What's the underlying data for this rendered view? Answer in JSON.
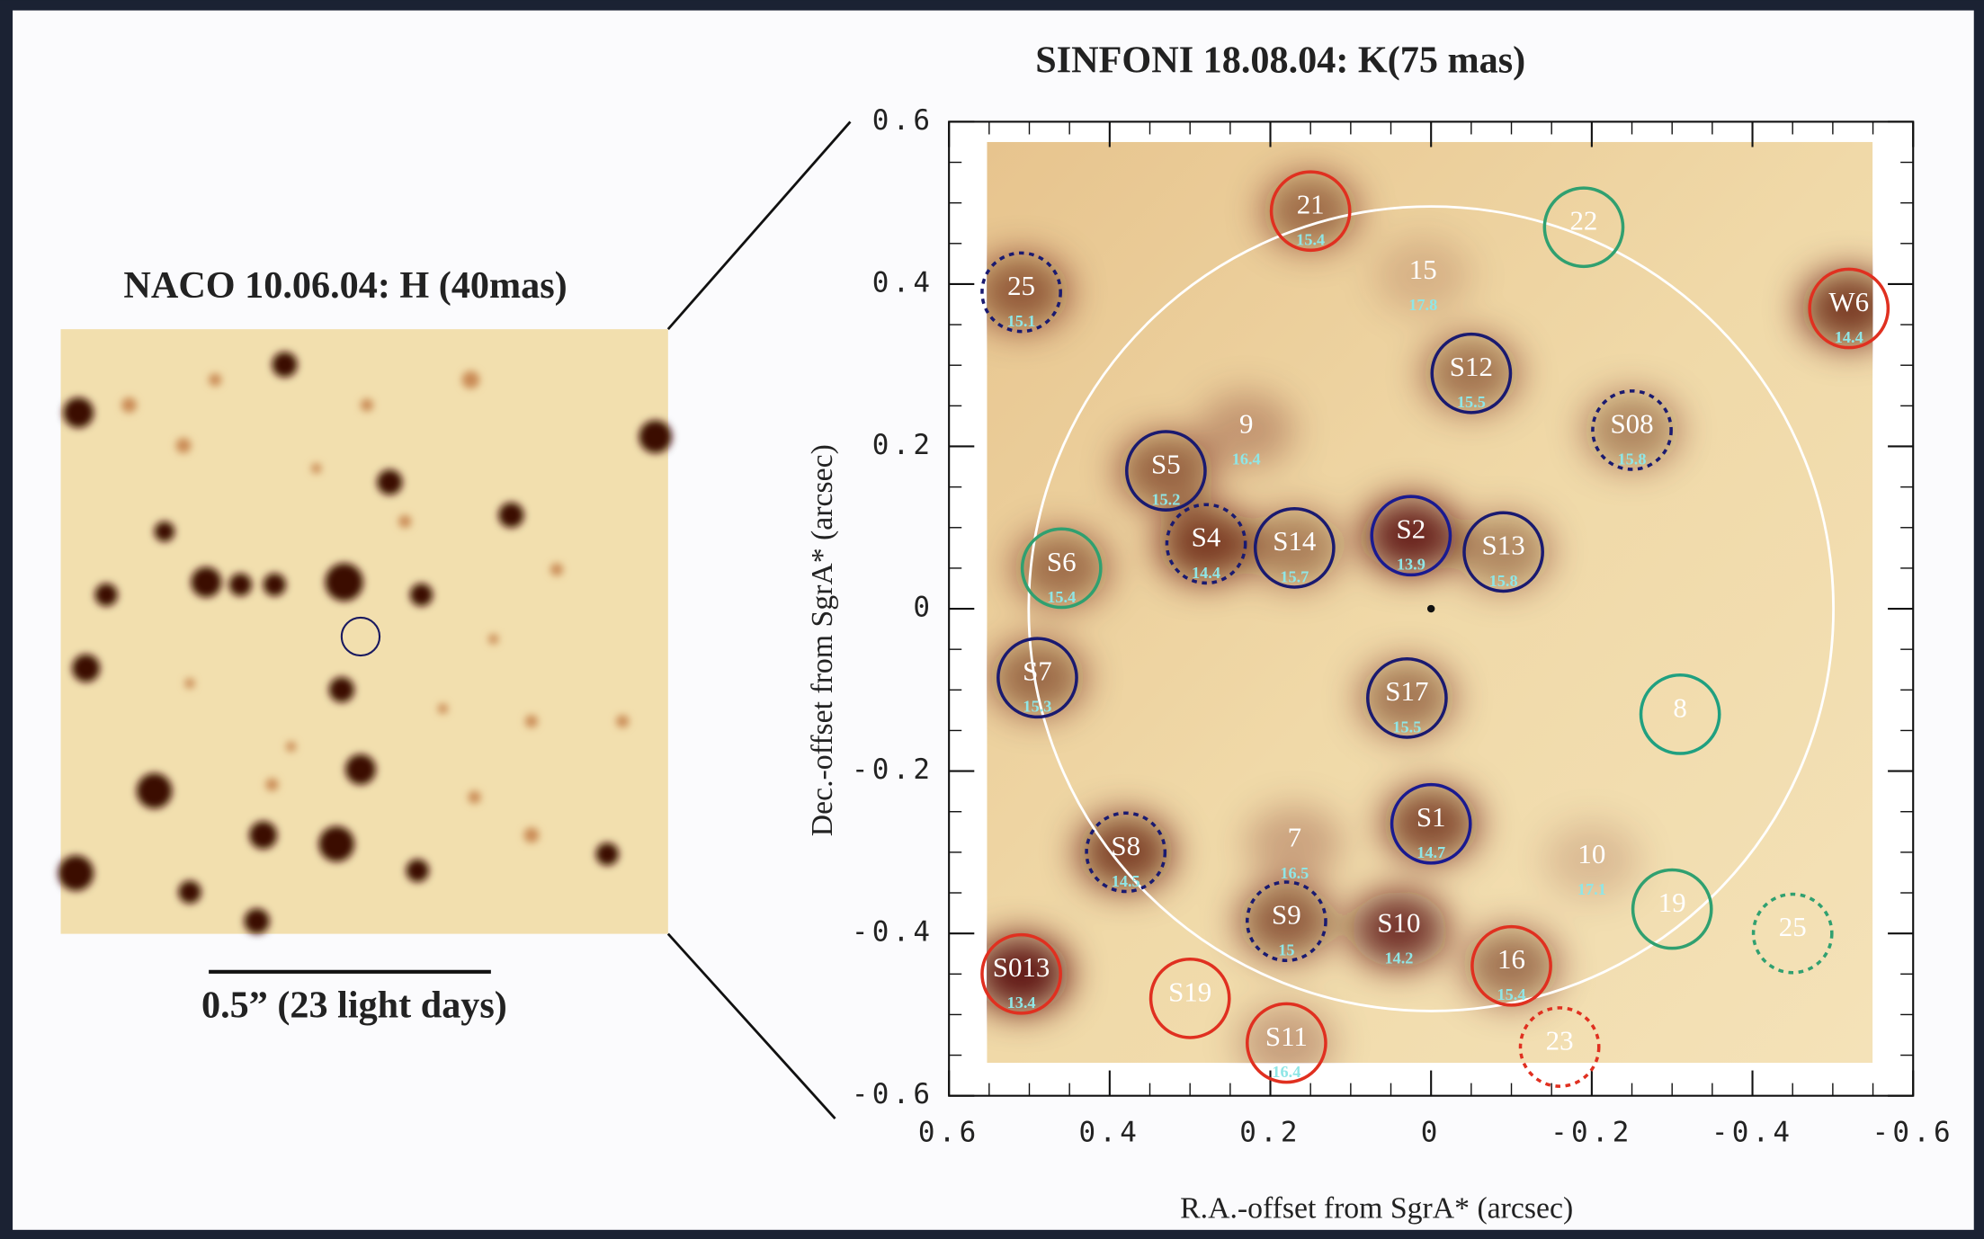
{
  "inset": {
    "title": "NACO 10.06.04: H (40mas)",
    "scale_label": "0.5” (23 light days)"
  },
  "chart_data": {
    "type": "scatter",
    "title": "SINFONI 18.08.04: K(75 mas)",
    "x_label": "R.A.-offset from SgrA* (arcsec)",
    "y_label": "Dec.-offset from SgrA* (arcsec)",
    "xlim": [
      0.6,
      -0.6
    ],
    "ylim": [
      -0.6,
      0.6
    ],
    "xticks": [
      0.6,
      0.4,
      0.2,
      0,
      -0.2,
      -0.4,
      -0.6
    ],
    "yticks": [
      0.6,
      0.4,
      0.2,
      0,
      -0.2,
      -0.4,
      -0.6
    ],
    "points": [
      {
        "label": "21",
        "x": 0.15,
        "y": 0.49,
        "mag": 15.4,
        "color": "#e03020",
        "style": "solid"
      },
      {
        "label": "22",
        "x": -0.19,
        "y": 0.47,
        "color": "#30a070",
        "style": "solid"
      },
      {
        "label": "25",
        "x": 0.51,
        "y": 0.39,
        "mag": 15.1,
        "color": "#1a1a70",
        "style": "dashed"
      },
      {
        "label": "15",
        "x": 0.01,
        "y": 0.41,
        "mag": 17.8,
        "color": "#ffffff",
        "style": "none"
      },
      {
        "label": "W6",
        "x": -0.52,
        "y": 0.37,
        "mag": 14.4,
        "color": "#e03020",
        "style": "solid"
      },
      {
        "label": "S12",
        "x": -0.05,
        "y": 0.29,
        "mag": 15.5,
        "color": "#1a1a70",
        "style": "solid"
      },
      {
        "label": "S08",
        "x": -0.25,
        "y": 0.22,
        "mag": 15.8,
        "color": "#1a1a70",
        "style": "dashed"
      },
      {
        "label": "9",
        "x": 0.23,
        "y": 0.22,
        "mag": 16.4,
        "color": "#ffffff",
        "style": "none"
      },
      {
        "label": "S5",
        "x": 0.33,
        "y": 0.17,
        "mag": 15.2,
        "color": "#1a1a70",
        "style": "solid"
      },
      {
        "label": "S4",
        "x": 0.28,
        "y": 0.08,
        "mag": 14.4,
        "color": "#1a1a70",
        "style": "dashed"
      },
      {
        "label": "S14",
        "x": 0.17,
        "y": 0.075,
        "mag": 15.7,
        "color": "#1a1a70",
        "style": "solid"
      },
      {
        "label": "S2",
        "x": 0.025,
        "y": 0.09,
        "mag": 13.9,
        "color": "#1a1a90",
        "style": "solid"
      },
      {
        "label": "S13",
        "x": -0.09,
        "y": 0.07,
        "mag": 15.8,
        "color": "#1a1a70",
        "style": "solid"
      },
      {
        "label": "S6",
        "x": 0.46,
        "y": 0.05,
        "mag": 15.4,
        "color": "#30a070",
        "style": "solid"
      },
      {
        "label": "S7",
        "x": 0.49,
        "y": -0.085,
        "mag": 15.3,
        "color": "#1a1a70",
        "style": "solid"
      },
      {
        "label": "S17",
        "x": 0.03,
        "y": -0.11,
        "mag": 15.5,
        "color": "#1a1a70",
        "style": "solid"
      },
      {
        "label": "8",
        "x": -0.31,
        "y": -0.13,
        "color": "#20a080",
        "style": "solid"
      },
      {
        "label": "S1",
        "x": 0.0,
        "y": -0.265,
        "mag": 14.7,
        "color": "#1a1a90",
        "style": "solid"
      },
      {
        "label": "7",
        "x": 0.17,
        "y": -0.29,
        "mag": 16.5,
        "color": "#ffffff",
        "style": "none"
      },
      {
        "label": "S8",
        "x": 0.38,
        "y": -0.3,
        "mag": 14.5,
        "color": "#1a1a70",
        "style": "dashed"
      },
      {
        "label": "10",
        "x": -0.2,
        "y": -0.31,
        "mag": 17.1,
        "color": "#ffffff",
        "style": "none"
      },
      {
        "label": "19",
        "x": -0.3,
        "y": -0.37,
        "color": "#30a070",
        "style": "solid"
      },
      {
        "label": "25",
        "x": -0.45,
        "y": -0.4,
        "color": "#30a070",
        "style": "dashed"
      },
      {
        "label": "S9",
        "x": 0.18,
        "y": -0.385,
        "mag": 15.0,
        "color": "#1a1a70",
        "style": "dashed"
      },
      {
        "label": "S10",
        "x": 0.04,
        "y": -0.395,
        "mag": 14.2,
        "color": "#1a1a70",
        "style": "none"
      },
      {
        "label": "S013",
        "x": 0.51,
        "y": -0.45,
        "mag": 13.4,
        "color": "#e03020",
        "style": "solid"
      },
      {
        "label": "16",
        "x": -0.1,
        "y": -0.44,
        "mag": 15.4,
        "color": "#e03020",
        "style": "solid"
      },
      {
        "label": "S19",
        "x": 0.3,
        "y": -0.48,
        "color": "#e03020",
        "style": "solid"
      },
      {
        "label": "S11",
        "x": 0.18,
        "y": -0.535,
        "mag": 16.4,
        "color": "#e03020",
        "style": "solid"
      },
      {
        "label": "23",
        "x": -0.16,
        "y": -0.54,
        "color": "#e03020",
        "style": "dashed"
      }
    ]
  }
}
